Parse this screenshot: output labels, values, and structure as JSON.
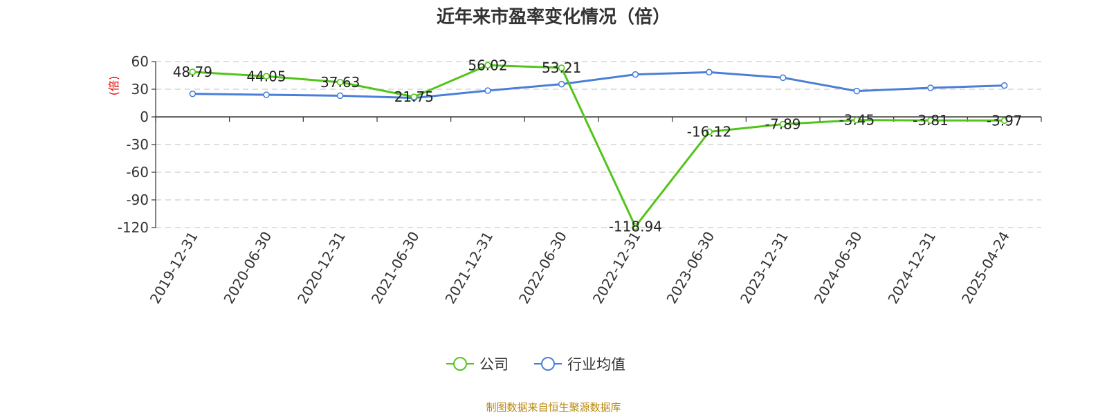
{
  "chart_data": {
    "type": "line",
    "title": "近年来市盈率变化情况（倍）",
    "xlabel": "",
    "ylabel": "(倍)",
    "categories": [
      "2019-12-31",
      "2020-06-30",
      "2020-12-31",
      "2021-06-30",
      "2021-12-31",
      "2022-06-30",
      "2022-12-31",
      "2023-06-30",
      "2023-12-31",
      "2024-06-30",
      "2024-12-31",
      "2025-04-24"
    ],
    "ylim": [
      -120,
      60
    ],
    "yticks": [
      60,
      30,
      0,
      -30,
      -60,
      -90,
      -120
    ],
    "grid": true,
    "legend_position": "bottom",
    "series": [
      {
        "name": "公司",
        "color": "#52c41a",
        "values": [
          48.79,
          44.05,
          37.63,
          21.75,
          56.02,
          53.21,
          -118.94,
          -16.12,
          -7.89,
          -3.45,
          -3.81,
          -3.97
        ],
        "labels": [
          "48.79",
          "44.05",
          "37.63",
          "21.75",
          "56.02",
          "53.21",
          "-118.94",
          "-16.12",
          "-7.89",
          "-3.45",
          "-3.81",
          "-3.97"
        ]
      },
      {
        "name": "行业均值",
        "color": "#4a7fd8",
        "values": [
          25.0,
          24.0,
          23.0,
          20.5,
          28.5,
          35.5,
          46.0,
          48.5,
          42.5,
          28.0,
          31.5,
          34.0
        ]
      }
    ]
  },
  "source": "制图数据来自恒生聚源数据库"
}
